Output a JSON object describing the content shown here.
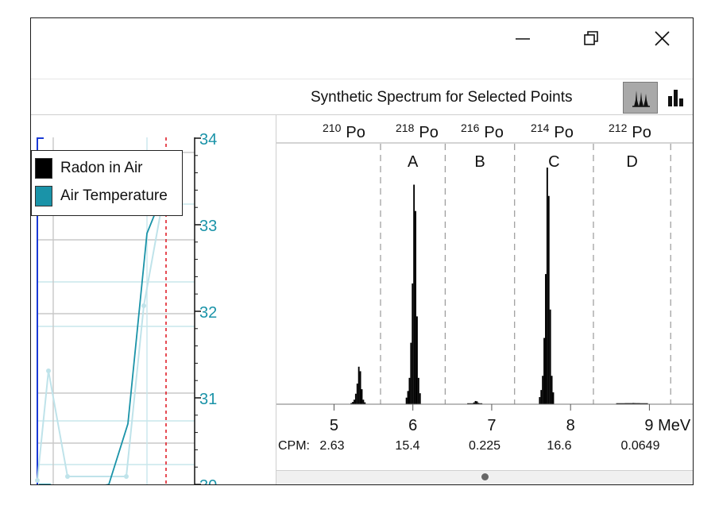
{
  "window_controls": {
    "minimize": "minimize-icon",
    "restore": "restore-icon",
    "close": "close-icon"
  },
  "toolbar": {
    "title": "Synthetic Spectrum for Selected Points",
    "buttons": [
      "peak-spectrum-icon",
      "bar-chart-icon"
    ]
  },
  "colors": {
    "radon": "#000000",
    "air_temperature": "#1a93a8",
    "air_temperature_light": "#bfe3ea",
    "cursor_line": "#e0202a",
    "left_axis": "#1a3ad6"
  },
  "legend": {
    "items": [
      {
        "label": "Radon in Air",
        "color": "#000000"
      },
      {
        "label": "Air Temperature",
        "color": "#1a93a8"
      }
    ]
  },
  "chart_data": [
    {
      "type": "line",
      "title": "",
      "y2_ticks": [
        "34",
        "33",
        "32",
        "31",
        "30"
      ],
      "y2lim": [
        30,
        34
      ],
      "series": [
        {
          "name": "Air Temperature",
          "values": [
            30.0,
            30.0,
            29.9,
            30.0,
            30.7,
            32.9,
            33.4,
            33.6
          ]
        }
      ],
      "grid": true,
      "legend_position": "top-left"
    },
    {
      "type": "bar",
      "title": "Synthetic Spectrum for Selected Points",
      "x_tick_labels": [
        "5",
        "6",
        "7",
        "8",
        "9 MeV"
      ],
      "x_ticks": [
        5,
        6,
        7,
        8,
        9
      ],
      "xlim": [
        4.27,
        9.55
      ],
      "isotopes": [
        {
          "mass": "210",
          "element": "Po"
        },
        {
          "mass": "218",
          "element": "Po"
        },
        {
          "mass": "216",
          "element": "Po"
        },
        {
          "mass": "214",
          "element": "Po"
        },
        {
          "mass": "212",
          "element": "Po"
        }
      ],
      "windows": [
        "A",
        "B",
        "C",
        "D"
      ],
      "window_boundaries": [
        5.59,
        6.41,
        7.29,
        8.29,
        9.27
      ],
      "cpm_label": "CPM:",
      "cpm_values": [
        "2.63",
        "15.4",
        "0.225",
        "16.6",
        "0.0649"
      ],
      "peaks": [
        {
          "energy": 5.3,
          "height": 2.63
        },
        {
          "energy": 6.0,
          "height": 15.4
        },
        {
          "energy": 6.78,
          "height": 0.225
        },
        {
          "energy": 7.69,
          "height": 16.6
        },
        {
          "energy": 8.78,
          "height": 0.0649
        }
      ]
    }
  ]
}
